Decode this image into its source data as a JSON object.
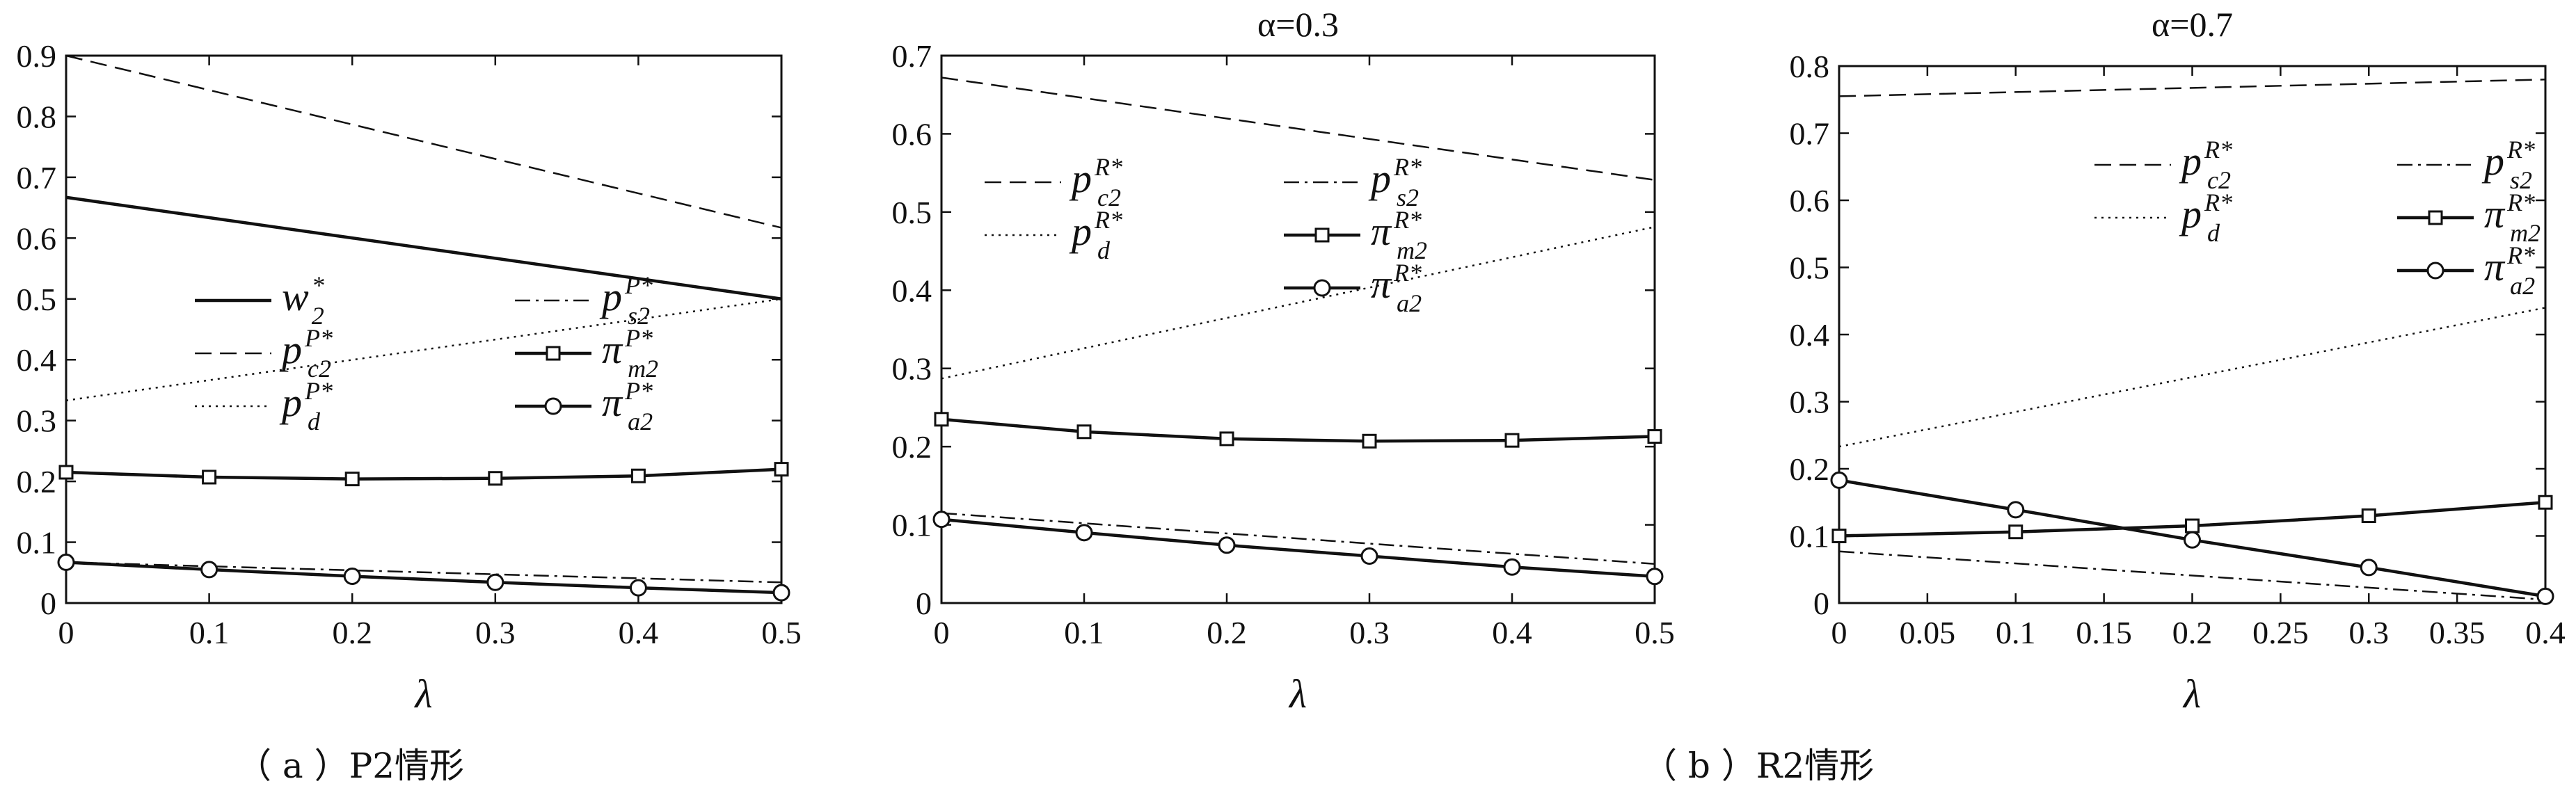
{
  "captions": [
    "（ a ）P2情形",
    "（ b ）R2情形"
  ],
  "chart_data": [
    {
      "type": "line",
      "title": "",
      "xlabel": "λ",
      "ylabel": "",
      "xlim": [
        0,
        0.5
      ],
      "ylim": [
        0,
        0.9
      ],
      "xticks": [
        0,
        0.1,
        0.2,
        0.3,
        0.4,
        0.5
      ],
      "yticks": [
        0,
        0.1,
        0.2,
        0.3,
        0.4,
        0.5,
        0.6,
        0.7,
        0.8,
        0.9
      ],
      "xtick_labels": [
        "0",
        "0.1",
        "0.2",
        "0.3",
        "0.4",
        "0.5"
      ],
      "ytick_labels": [
        "0",
        "0.1",
        "0.2",
        "0.3",
        "0.4",
        "0.5",
        "0.6",
        "0.7",
        "0.8",
        "0.9"
      ],
      "grid": false,
      "legend_position": "center",
      "series": [
        {
          "name": "w2*",
          "label_main": "w",
          "label_sup": "*",
          "label_sub": "2",
          "style": "solid",
          "marker": "none",
          "x": [
            0,
            0.5
          ],
          "y": [
            0.667,
            0.5
          ]
        },
        {
          "name": "pc2P*",
          "label_main": "p",
          "label_sup": "P*",
          "label_sub": "c2",
          "style": "dashed",
          "marker": "none",
          "x": [
            0,
            0.5
          ],
          "y": [
            0.9,
            0.617
          ]
        },
        {
          "name": "pdP*",
          "label_main": "p",
          "label_sup": "P*",
          "label_sub": "d",
          "style": "dotted",
          "marker": "none",
          "x": [
            0,
            0.5
          ],
          "y": [
            0.333,
            0.5
          ]
        },
        {
          "name": "ps2P*",
          "label_main": "p",
          "label_sup": "P*",
          "label_sub": "s2",
          "style": "dashdot",
          "marker": "none",
          "x": [
            0,
            0.5
          ],
          "y": [
            0.067,
            0.034
          ]
        },
        {
          "name": "πm2P*",
          "label_main": "π",
          "label_sup": "P*",
          "label_sub": "m2",
          "style": "solid",
          "marker": "square",
          "x": [
            0,
            0.1,
            0.2,
            0.3,
            0.4,
            0.5
          ],
          "y": [
            0.215,
            0.207,
            0.204,
            0.205,
            0.209,
            0.22
          ]
        },
        {
          "name": "πa2P*",
          "label_main": "π",
          "label_sup": "P*",
          "label_sub": "a2",
          "style": "solid",
          "marker": "circle",
          "x": [
            0,
            0.1,
            0.2,
            0.3,
            0.4,
            0.5
          ],
          "y": [
            0.067,
            0.055,
            0.044,
            0.034,
            0.025,
            0.017
          ]
        }
      ]
    },
    {
      "type": "line",
      "title": "α=0.3",
      "xlabel": "λ",
      "ylabel": "",
      "xlim": [
        0,
        0.5
      ],
      "ylim": [
        0,
        0.7
      ],
      "xticks": [
        0,
        0.1,
        0.2,
        0.3,
        0.4,
        0.5
      ],
      "yticks": [
        0,
        0.1,
        0.2,
        0.3,
        0.4,
        0.5,
        0.6,
        0.7
      ],
      "xtick_labels": [
        "0",
        "0.1",
        "0.2",
        "0.3",
        "0.4",
        "0.5"
      ],
      "ytick_labels": [
        "0",
        "0.1",
        "0.2",
        "0.3",
        "0.4",
        "0.5",
        "0.6",
        "0.7"
      ],
      "grid": false,
      "legend_position": "top-left",
      "series": [
        {
          "name": "pc2R*",
          "label_main": "p",
          "label_sup": "R*",
          "label_sub": "c2",
          "style": "dashed",
          "marker": "none",
          "x": [
            0,
            0.5
          ],
          "y": [
            0.672,
            0.541
          ]
        },
        {
          "name": "pdR*",
          "label_main": "p",
          "label_sup": "R*",
          "label_sub": "d",
          "style": "dotted",
          "marker": "none",
          "x": [
            0,
            0.5
          ],
          "y": [
            0.287,
            0.481
          ]
        },
        {
          "name": "ps2R*",
          "label_main": "p",
          "label_sup": "R*",
          "label_sub": "s2",
          "style": "dashdot",
          "marker": "none",
          "x": [
            0,
            0.5
          ],
          "y": [
            0.115,
            0.05
          ]
        },
        {
          "name": "πm2R*",
          "label_main": "π",
          "label_sup": "R*",
          "label_sub": "m2",
          "style": "solid",
          "marker": "square",
          "x": [
            0,
            0.1,
            0.2,
            0.3,
            0.4,
            0.5
          ],
          "y": [
            0.235,
            0.219,
            0.21,
            0.207,
            0.208,
            0.213
          ]
        },
        {
          "name": "πa2R*",
          "label_main": "π",
          "label_sup": "R*",
          "label_sub": "a2",
          "style": "solid",
          "marker": "circle",
          "x": [
            0,
            0.1,
            0.2,
            0.3,
            0.4,
            0.5
          ],
          "y": [
            0.107,
            0.09,
            0.074,
            0.06,
            0.046,
            0.034
          ]
        }
      ]
    },
    {
      "type": "line",
      "title": "α=0.7",
      "xlabel": "λ",
      "ylabel": "",
      "xlim": [
        0,
        0.4
      ],
      "ylim": [
        0,
        0.8
      ],
      "xticks": [
        0,
        0.05,
        0.1,
        0.15,
        0.2,
        0.25,
        0.3,
        0.35,
        0.4
      ],
      "yticks": [
        0,
        0.1,
        0.2,
        0.3,
        0.4,
        0.5,
        0.6,
        0.7,
        0.8
      ],
      "xtick_labels": [
        "0",
        "0.05",
        "0.1",
        "0.15",
        "0.2",
        "0.25",
        "0.3",
        "0.35",
        "0.4"
      ],
      "ytick_labels": [
        "0",
        "0.1",
        "0.2",
        "0.3",
        "0.4",
        "0.5",
        "0.6",
        "0.7",
        "0.8"
      ],
      "grid": false,
      "legend_position": "top-right",
      "series": [
        {
          "name": "pc2R*",
          "label_main": "p",
          "label_sup": "R*",
          "label_sub": "c2",
          "style": "dashed",
          "marker": "none",
          "x": [
            0,
            0.4
          ],
          "y": [
            0.755,
            0.78
          ]
        },
        {
          "name": "pdR*",
          "label_main": "p",
          "label_sup": "R*",
          "label_sub": "d",
          "style": "dotted",
          "marker": "none",
          "x": [
            0,
            0.4
          ],
          "y": [
            0.233,
            0.44
          ]
        },
        {
          "name": "ps2R*",
          "label_main": "p",
          "label_sup": "R*",
          "label_sub": "s2",
          "style": "dashdot",
          "marker": "none",
          "x": [
            0,
            0.4
          ],
          "y": [
            0.077,
            0.005
          ]
        },
        {
          "name": "πm2R*",
          "label_main": "π",
          "label_sup": "R*",
          "label_sub": "m2",
          "style": "solid",
          "marker": "square",
          "x": [
            0,
            0.1,
            0.2,
            0.3,
            0.4
          ],
          "y": [
            0.1,
            0.106,
            0.115,
            0.13,
            0.15
          ]
        },
        {
          "name": "πa2R*",
          "label_main": "π",
          "label_sup": "R*",
          "label_sub": "a2",
          "style": "solid",
          "marker": "circle",
          "x": [
            0,
            0.1,
            0.2,
            0.3,
            0.4
          ],
          "y": [
            0.183,
            0.139,
            0.094,
            0.053,
            0.01
          ]
        }
      ]
    }
  ]
}
